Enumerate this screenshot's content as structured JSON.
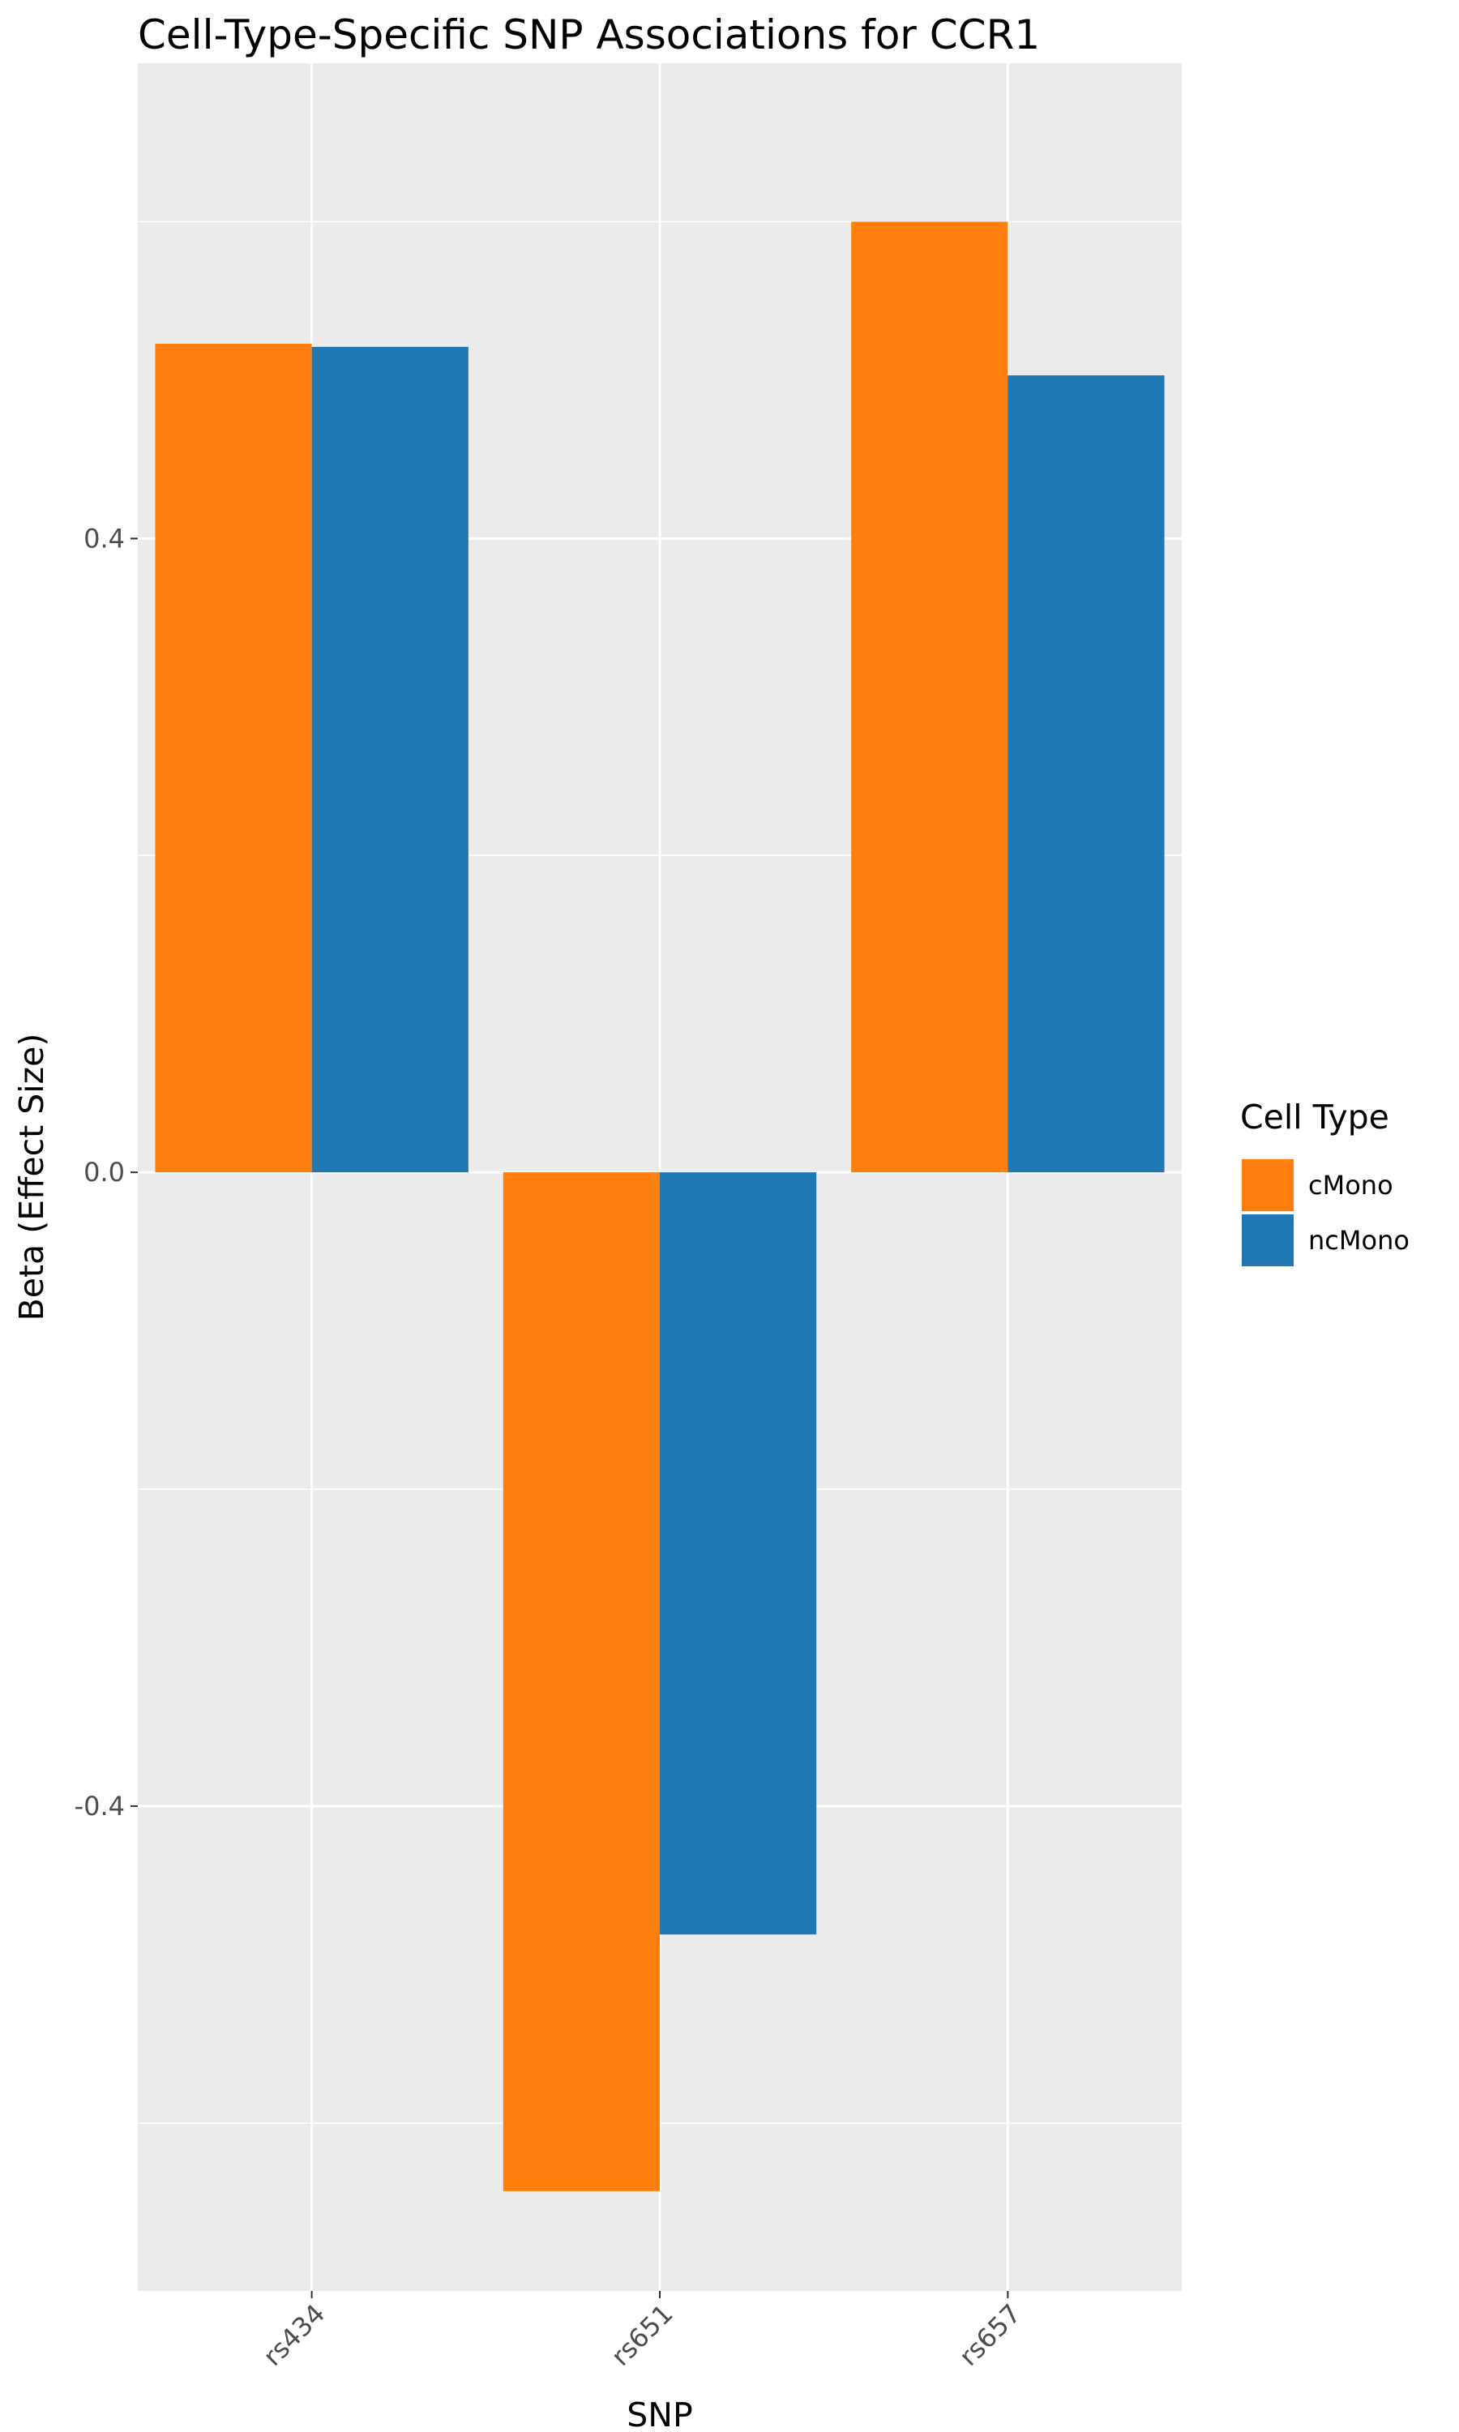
{
  "chart_data": {
    "type": "bar",
    "title": "Cell-Type-Specific SNP Associations for  CCR1",
    "xlabel": "SNP",
    "ylabel": "Beta (Effect Size)",
    "categories": [
      "rs434",
      "rs651",
      "rs657"
    ],
    "series": [
      {
        "name": "cMono",
        "color": "#ff7f0e",
        "values": [
          0.523,
          -0.643,
          0.6
        ]
      },
      {
        "name": "ncMono",
        "color": "#1f77b4",
        "values": [
          0.521,
          -0.481,
          0.503
        ]
      }
    ],
    "ylim": [
      -0.706,
      0.7
    ],
    "yticks": [
      -0.4,
      0.0,
      0.4
    ],
    "ytick_labels": [
      "-0.4",
      "0.0",
      "0.4"
    ],
    "grid": true,
    "legend": {
      "title": "Cell Type",
      "position": "right"
    },
    "panel_background": "#ebebeb"
  }
}
